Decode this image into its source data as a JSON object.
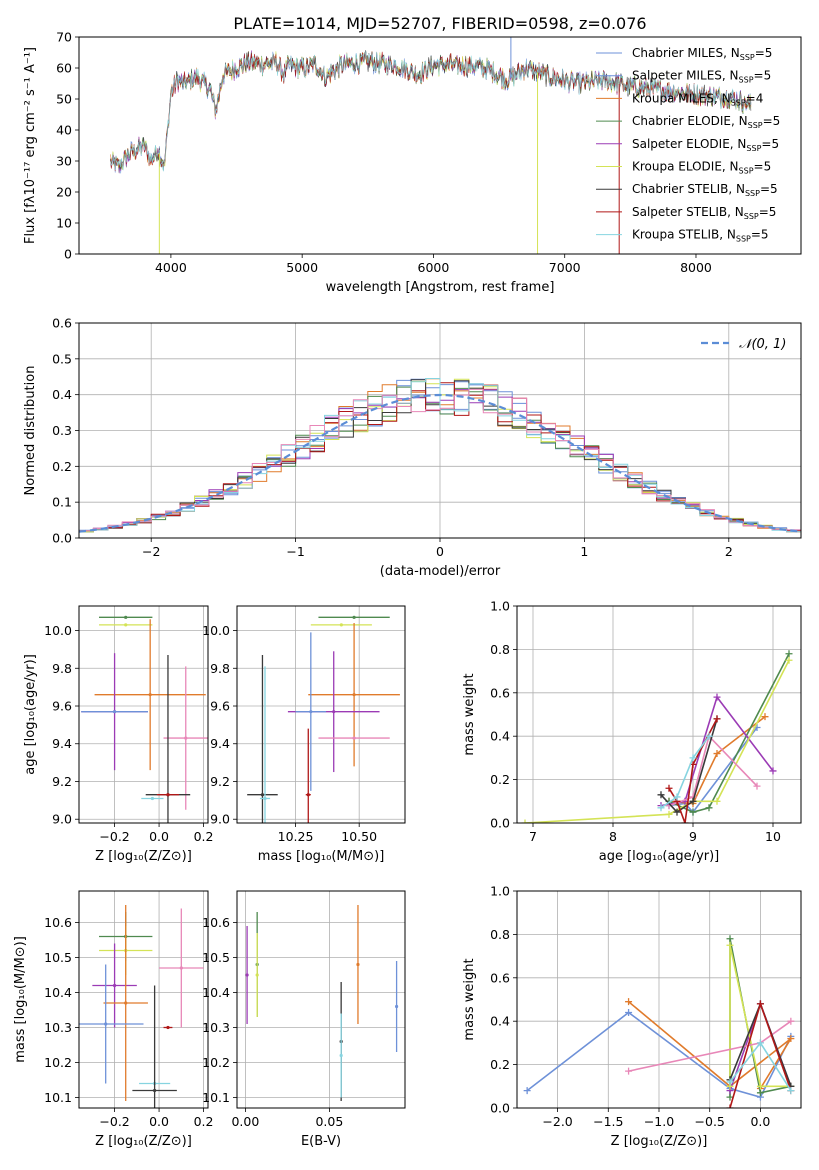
{
  "figure": {
    "title": "PLATE=1014, MJD=52707, FIBERID=0598, z=0.076"
  },
  "legend_labels": [
    {
      "name": "Chabrier MILES",
      "sub": "SSP",
      "suffix": "=5",
      "color": "#6e91d8"
    },
    {
      "name": "Salpeter MILES",
      "sub": "SSP",
      "suffix": "=5",
      "color": "#6a8fd9"
    },
    {
      "name": "Kroupa MILES",
      "sub": "SSP",
      "suffix": "=4",
      "color": "#e07b2c"
    },
    {
      "name": "Chabrier ELODIE",
      "sub": "SSP",
      "suffix": "=5",
      "color": "#4f8a4f"
    },
    {
      "name": "Salpeter ELODIE",
      "sub": "SSP",
      "suffix": "=5",
      "color": "#9b3bb5"
    },
    {
      "name": "Kroupa ELODIE",
      "sub": "SSP",
      "suffix": "=5",
      "color": "#d4e356"
    },
    {
      "name": "Chabrier STELIB",
      "sub": "SSP",
      "suffix": "=5",
      "color": "#3a3a3a"
    },
    {
      "name": "Salpeter STELIB",
      "sub": "SSP",
      "suffix": "=5",
      "color": "#b01818"
    },
    {
      "name": "Kroupa STELIB",
      "sub": "SSP",
      "suffix": "=5",
      "color": "#86d4e0"
    }
  ],
  "chart_data": [
    {
      "id": "spectrum",
      "type": "line",
      "xlabel": "wavelength [Angstrom, rest frame]",
      "ylabel": "Flux [fλ10⁻¹⁷ erg cm⁻² s⁻¹ A⁻¹]",
      "xlim": [
        3300,
        8800
      ],
      "ylim": [
        0,
        70
      ],
      "xticks": [
        4000,
        5000,
        6000,
        7000,
        8000
      ],
      "yticks": [
        0,
        10,
        20,
        30,
        40,
        50,
        60,
        70
      ],
      "continuum": {
        "x": [
          3540,
          3600,
          3700,
          3800,
          3850,
          3900,
          3950,
          4000,
          4050,
          4100,
          4200,
          4300,
          4340,
          4400,
          4500,
          4600,
          4700,
          4800,
          4861,
          4900,
          5000,
          5100,
          5175,
          5300,
          5500,
          5700,
          5890,
          6000,
          6200,
          6400,
          6563,
          6700,
          6900,
          7100,
          7300,
          7500,
          7700,
          7900,
          8100,
          8300,
          8420
        ],
        "y": [
          30,
          28,
          33,
          35,
          30,
          34,
          28,
          52,
          56,
          55,
          57,
          53,
          46,
          58,
          60,
          62,
          61,
          62,
          58,
          61,
          60,
          61,
          57,
          61,
          62,
          61,
          58,
          61,
          61,
          60,
          56,
          60,
          57,
          55,
          56,
          54,
          53,
          52,
          51,
          50,
          48
        ]
      },
      "spikes": [
        {
          "x": 3912,
          "y": 0,
          "color": "#d4e356"
        },
        {
          "x": 6793,
          "y": 0,
          "color": "#d4e356"
        },
        {
          "x": 7415,
          "y": 0,
          "color": "#b01818"
        },
        {
          "x": 6590,
          "y": 70,
          "color": "#6e91d8"
        }
      ]
    },
    {
      "id": "residuals",
      "type": "bar",
      "xlabel": "(data-model)/error",
      "ylabel": "Normed distribution",
      "xlim": [
        -2.5,
        2.5
      ],
      "ylim": [
        0,
        0.6
      ],
      "xticks": [
        -2,
        -1,
        0,
        1,
        2
      ],
      "yticks": [
        0.0,
        0.1,
        0.2,
        0.3,
        0.4,
        0.5,
        0.6
      ],
      "bin_width": 0.1,
      "reference": {
        "name": "𝒩(0, 1)",
        "type": "gaussian",
        "mean": 0,
        "sigma": 1
      }
    },
    {
      "id": "age_vs_Z",
      "type": "scatter",
      "xlabel": "Z [log₁₀(Z/Z⊙)]",
      "ylabel": "age  [log₁₀(age/yr)]",
      "xlim": [
        -0.36,
        0.22
      ],
      "ylim": [
        8.98,
        10.13
      ],
      "xticks": [
        -0.2,
        0.0,
        0.2
      ],
      "yticks": [
        9.0,
        9.2,
        9.4,
        9.6,
        9.8,
        10.0
      ],
      "points": [
        {
          "x": -0.15,
          "y": 10.07,
          "xerr": 0.12,
          "yerr": 0.0,
          "color": "#4f8a4f"
        },
        {
          "x": -0.15,
          "y": 10.03,
          "xerr": 0.12,
          "yerr": 0.0,
          "color": "#d4e356"
        },
        {
          "x": -0.04,
          "y": 9.66,
          "xerr": 0.25,
          "yerr": 0.4,
          "color": "#e07b2c"
        },
        {
          "x": -0.2,
          "y": 9.57,
          "xerr": 0.15,
          "yerr": 0.31,
          "color": "#9b3bb5"
        },
        {
          "x": -0.2,
          "y": 9.57,
          "xerr": 0.15,
          "yerr": 0.0,
          "color": "#6e91d8"
        },
        {
          "x": 0.12,
          "y": 9.43,
          "xerr": 0.1,
          "yerr": 0.38,
          "color": "#e887b8"
        },
        {
          "x": 0.04,
          "y": 9.13,
          "xerr": 0.1,
          "yerr": 0.74,
          "color": "#3a3a3a"
        },
        {
          "x": 0.04,
          "y": 9.13,
          "xerr": 0.05,
          "yerr": 0.0,
          "color": "#b01818"
        },
        {
          "x": -0.03,
          "y": 9.11,
          "xerr": 0.05,
          "yerr": 0.0,
          "color": "#86d4e0"
        }
      ]
    },
    {
      "id": "age_vs_mass",
      "type": "scatter",
      "xlabel": "mass [log₁₀(M/M⊙)]",
      "ylabel": "",
      "xlim": [
        10.02,
        10.68
      ],
      "ylim": [
        8.98,
        10.13
      ],
      "xticks": [
        10.25,
        10.5
      ],
      "yticks": [
        9.0,
        9.2,
        9.4,
        9.6,
        9.8,
        10.0
      ],
      "points": [
        {
          "x": 10.48,
          "y": 10.07,
          "xerr": 0.14,
          "yerr": 0.0,
          "color": "#4f8a4f"
        },
        {
          "x": 10.43,
          "y": 10.03,
          "xerr": 0.12,
          "yerr": 0.0,
          "color": "#d4e356"
        },
        {
          "x": 10.48,
          "y": 9.66,
          "xerr": 0.18,
          "yerr": 0.38,
          "color": "#e07b2c"
        },
        {
          "x": 10.4,
          "y": 9.57,
          "xerr": 0.18,
          "yerr": 0.32,
          "color": "#9b3bb5"
        },
        {
          "x": 10.31,
          "y": 9.57,
          "xerr": 0.06,
          "yerr": 0.42,
          "color": "#6e91d8"
        },
        {
          "x": 10.48,
          "y": 9.43,
          "xerr": 0.14,
          "yerr": 0.0,
          "color": "#e887b8"
        },
        {
          "x": 10.12,
          "y": 9.13,
          "xerr": 0.06,
          "yerr": 0.74,
          "color": "#3a3a3a"
        },
        {
          "x": 10.3,
          "y": 9.13,
          "xerr": 0.01,
          "yerr": 0.35,
          "color": "#b01818"
        },
        {
          "x": 10.13,
          "y": 9.11,
          "xerr": 0.02,
          "yerr": 0.7,
          "color": "#86d4e0"
        }
      ]
    },
    {
      "id": "weight_vs_age",
      "type": "line",
      "xlabel": "age  [log₁₀(age/yr)]",
      "ylabel": "mass weight",
      "xlim": [
        6.8,
        10.35
      ],
      "ylim": [
        0.0,
        1.0
      ],
      "xticks": [
        7,
        8,
        9,
        10
      ],
      "yticks": [
        0.0,
        0.2,
        0.4,
        0.6,
        0.8,
        1.0
      ]
    },
    {
      "id": "mass_vs_Z",
      "type": "scatter",
      "xlabel": "Z [log₁₀(Z/Z⊙)]",
      "ylabel": "mass [log₁₀(M/M⊙)]",
      "xlim": [
        -0.36,
        0.22
      ],
      "ylim": [
        10.07,
        10.69
      ],
      "xticks": [
        -0.2,
        0.0,
        0.2
      ],
      "yticks": [
        10.1,
        10.2,
        10.3,
        10.4,
        10.5,
        10.6
      ],
      "points": [
        {
          "x": -0.15,
          "y": 10.56,
          "xerr": 0.12,
          "yerr": 0.07,
          "color": "#4f8a4f"
        },
        {
          "x": -0.15,
          "y": 10.52,
          "xerr": 0.12,
          "yerr": 0.07,
          "color": "#d4e356"
        },
        {
          "x": 0.1,
          "y": 10.47,
          "xerr": 0.1,
          "yerr": 0.17,
          "color": "#e887b8"
        },
        {
          "x": -0.2,
          "y": 10.42,
          "xerr": 0.1,
          "yerr": 0.12,
          "color": "#9b3bb5"
        },
        {
          "x": -0.15,
          "y": 10.37,
          "xerr": 0.1,
          "yerr": 0.28,
          "color": "#e07b2c"
        },
        {
          "x": -0.24,
          "y": 10.31,
          "xerr": 0.17,
          "yerr": 0.17,
          "color": "#6e91d8"
        },
        {
          "x": 0.04,
          "y": 10.3,
          "xerr": 0.02,
          "yerr": 0.0,
          "color": "#b01818"
        },
        {
          "x": -0.02,
          "y": 10.14,
          "xerr": 0.07,
          "yerr": 0.0,
          "color": "#86d4e0"
        },
        {
          "x": -0.02,
          "y": 10.12,
          "xerr": 0.1,
          "yerr": 0.3,
          "color": "#3a3a3a"
        }
      ]
    },
    {
      "id": "mass_vs_EBV",
      "type": "scatter",
      "xlabel": "E(B-V)",
      "ylabel": "",
      "xlim": [
        -0.005,
        0.095
      ],
      "ylim": [
        10.07,
        10.69
      ],
      "xticks": [
        0.0,
        0.05
      ],
      "yticks": [
        10.1,
        10.2,
        10.3,
        10.4,
        10.5,
        10.6
      ],
      "points": [
        {
          "x": 0.001,
          "y": 10.45,
          "xerr": 0.0,
          "yerr": 0.14,
          "color": "#9b3bb5"
        },
        {
          "x": 0.007,
          "y": 10.48,
          "xerr": 0.0,
          "yerr": 0.15,
          "color": "#4f8a4f"
        },
        {
          "x": 0.007,
          "y": 10.45,
          "xerr": 0.0,
          "yerr": 0.12,
          "color": "#d4e356"
        },
        {
          "x": 0.057,
          "y": 10.26,
          "xerr": 0.0,
          "yerr": 0.17,
          "color": "#3a3a3a"
        },
        {
          "x": 0.057,
          "y": 10.22,
          "xerr": 0.0,
          "yerr": 0.12,
          "color": "#86d4e0"
        },
        {
          "x": 0.067,
          "y": 10.48,
          "xerr": 0.0,
          "yerr": 0.17,
          "color": "#e07b2c"
        },
        {
          "x": 0.09,
          "y": 10.36,
          "xerr": 0.0,
          "yerr": 0.13,
          "color": "#6e91d8"
        }
      ]
    },
    {
      "id": "weight_vs_Z",
      "type": "line",
      "xlabel": "Z [log₁₀(Z/Z⊙)]",
      "ylabel": "mass weight",
      "xlim": [
        -2.4,
        0.4
      ],
      "ylim": [
        0.0,
        1.0
      ],
      "xticks": [
        -2.0,
        -1.5,
        -1.0,
        -0.5,
        0.0
      ],
      "yticks": [
        0.0,
        0.2,
        0.4,
        0.6,
        0.8,
        1.0
      ]
    }
  ],
  "weight_series": [
    {
      "color": "#6e91d8",
      "age": [
        8.7,
        8.9,
        9.0,
        9.8
      ],
      "age_w": [
        0.08,
        0.09,
        0.05,
        0.44
      ],
      "Z": [
        -2.3,
        -1.3,
        -0.3,
        0.0,
        0.3
      ],
      "Z_w": [
        0.08,
        0.44,
        0.09,
        0.05,
        0.33
      ]
    },
    {
      "color": "#e07b2c",
      "age": [
        8.7,
        9.0,
        9.3,
        9.9
      ],
      "age_w": [
        0.1,
        0.09,
        0.32,
        0.49
      ],
      "Z": [
        -1.3,
        -0.3,
        0.3,
        0.0
      ],
      "Z_w": [
        0.49,
        0.1,
        0.32,
        0.09
      ]
    },
    {
      "color": "#4f8a4f",
      "age": [
        8.7,
        9.0,
        9.2,
        10.2
      ],
      "age_w": [
        0.1,
        0.05,
        0.07,
        0.78
      ],
      "Z": [
        -0.3,
        -0.3,
        0.0,
        0.3
      ],
      "Z_w": [
        0.05,
        0.78,
        0.07,
        0.1
      ]
    },
    {
      "color": "#9b3bb5",
      "age": [
        8.6,
        8.9,
        9.3,
        10.0
      ],
      "age_w": [
        0.08,
        0.1,
        0.58,
        0.24
      ],
      "Z": [
        -0.3,
        0.0,
        0.3
      ],
      "Z_w": [
        0.08,
        0.48,
        0.1
      ]
    },
    {
      "color": "#d4e356",
      "age": [
        6.9,
        8.7,
        9.0,
        9.3,
        10.2
      ],
      "age_w": [
        0.0,
        0.04,
        0.1,
        0.1,
        0.75
      ],
      "Z": [
        -0.3,
        -0.3,
        0.0,
        0.3
      ],
      "Z_w": [
        0.1,
        0.75,
        0.1,
        0.1
      ]
    },
    {
      "color": "#e887b8",
      "age": [
        8.7,
        9.0,
        9.2,
        9.8
      ],
      "age_w": [
        0.08,
        0.12,
        0.4,
        0.17
      ],
      "Z": [
        -1.3,
        0.0,
        0.3
      ],
      "Z_w": [
        0.17,
        0.3,
        0.4
      ]
    },
    {
      "color": "#3a3a3a",
      "age": [
        8.6,
        8.8,
        9.0,
        9.3
      ],
      "age_w": [
        0.13,
        0.05,
        0.1,
        0.48
      ],
      "Z": [
        -0.3,
        0.0,
        0.3
      ],
      "Z_w": [
        0.13,
        0.48,
        0.1
      ]
    },
    {
      "color": "#b01818",
      "age": [
        8.7,
        8.8,
        8.9,
        9.0,
        9.3
      ],
      "age_w": [
        0.16,
        0.1,
        0.0,
        0.27,
        0.48
      ],
      "Z": [
        -0.3,
        0.0,
        0.3
      ],
      "Z_w": [
        0.0,
        0.48,
        0.08
      ]
    },
    {
      "color": "#86d4e0",
      "age": [
        8.6,
        8.8,
        9.0,
        9.2
      ],
      "age_w": [
        0.07,
        0.12,
        0.3,
        0.4
      ],
      "Z": [
        -0.3,
        0.0,
        0.3
      ],
      "Z_w": [
        0.12,
        0.3,
        0.08
      ]
    }
  ]
}
